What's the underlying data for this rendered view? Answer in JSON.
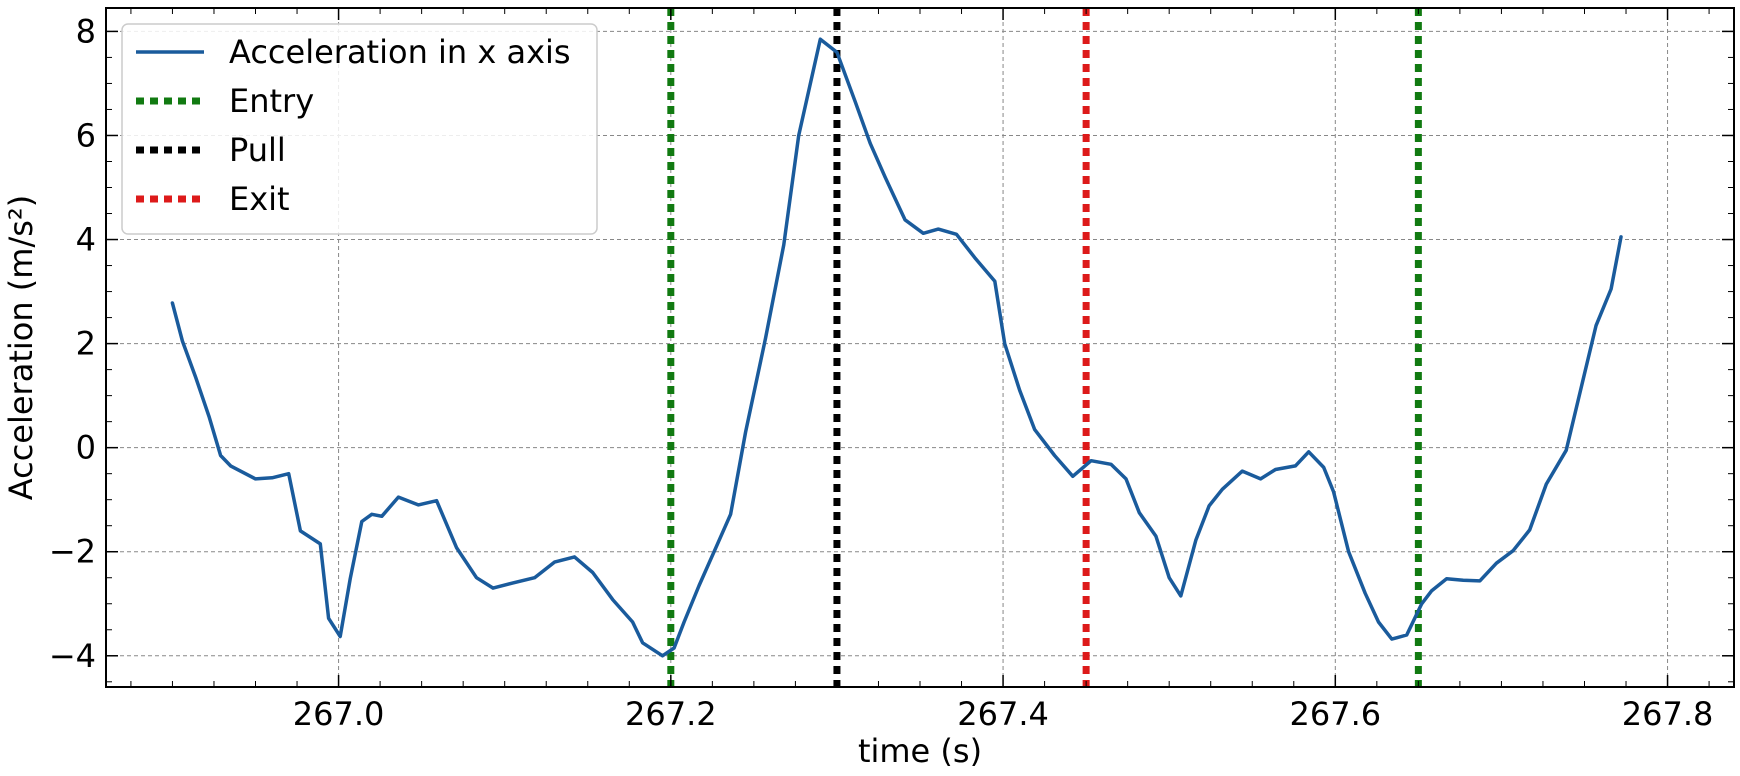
{
  "chart_data": {
    "type": "line",
    "title": "",
    "xlabel": "time (s)",
    "ylabel": "Acceleration (m/s²)",
    "xlim": [
      266.86,
      267.84
    ],
    "ylim": [
      -4.6,
      8.45
    ],
    "xticks": [
      267.0,
      267.2,
      267.4,
      267.6,
      267.8
    ],
    "xtick_labels": [
      "267.0",
      "267.2",
      "267.4",
      "267.6",
      "267.8"
    ],
    "yticks": [
      -4,
      -2,
      0,
      2,
      4,
      6,
      8
    ],
    "ytick_labels": [
      "−4",
      "−2",
      "0",
      "2",
      "4",
      "6",
      "8"
    ],
    "grid": true,
    "legend_position": "top-left",
    "series": [
      {
        "name": "Acceleration in x axis",
        "color": "#1a5b9c",
        "style": "solid",
        "x": [
          266.9,
          266.906,
          266.914,
          266.922,
          266.929,
          266.935,
          266.95,
          266.96,
          266.97,
          266.977,
          266.989,
          266.994,
          267.001,
          267.007,
          267.014,
          267.02,
          267.026,
          267.036,
          267.048,
          267.059,
          267.071,
          267.083,
          267.093,
          267.105,
          267.118,
          267.13,
          267.142,
          267.153,
          267.165,
          267.177,
          267.183,
          267.195,
          267.202,
          267.208,
          267.217,
          267.227,
          267.236,
          267.245,
          267.257,
          267.268,
          267.277,
          267.29,
          267.3,
          267.311,
          267.32,
          267.329,
          267.341,
          267.352,
          267.361,
          267.372,
          267.383,
          267.395,
          267.401,
          267.41,
          267.419,
          267.431,
          267.442,
          267.453,
          267.465,
          267.474,
          267.482,
          267.492,
          267.5,
          267.507,
          267.516,
          267.524,
          267.532,
          267.544,
          267.555,
          267.564,
          267.576,
          267.584,
          267.593,
          267.599,
          267.608,
          267.618,
          267.626,
          267.634,
          267.643,
          267.652,
          267.658,
          267.667,
          267.677,
          267.687,
          267.697,
          267.707,
          267.717,
          267.727,
          267.739,
          267.747,
          267.757,
          267.766,
          267.772,
          267.781,
          267.789
        ],
        "y": [
          2.78,
          2.05,
          1.35,
          0.6,
          -0.15,
          -0.35,
          -0.6,
          -0.58,
          -0.5,
          -1.6,
          -1.85,
          -3.28,
          -3.63,
          -2.52,
          -1.42,
          -1.28,
          -1.32,
          -0.95,
          -1.1,
          -1.02,
          -1.92,
          -2.5,
          -2.7,
          -2.6,
          -2.5,
          -2.2,
          -2.1,
          -2.4,
          -2.92,
          -3.35,
          -3.75,
          -4.0,
          -3.85,
          -3.35,
          -2.65,
          -1.93,
          -1.28,
          0.3,
          2.1,
          3.9,
          6.0,
          7.85,
          7.6,
          6.65,
          5.85,
          5.2,
          4.38,
          4.12,
          4.2,
          4.1,
          3.65,
          3.2,
          2.0,
          1.1,
          0.35,
          -0.15,
          -0.55,
          -0.25,
          -0.32,
          -0.6,
          -1.25,
          -1.7,
          -2.5,
          -2.85,
          -1.78,
          -1.12,
          -0.8,
          -0.45,
          -0.6,
          -0.42,
          -0.35,
          -0.08,
          -0.38,
          -0.85,
          -2.0,
          -2.8,
          -3.35,
          -3.68,
          -3.6,
          -3.0,
          -2.75,
          -2.52,
          -2.55,
          -2.56,
          -2.22,
          -1.98,
          -1.58,
          -0.7,
          -0.05,
          1.02,
          2.35,
          3.05,
          4.05,
          null,
          null
        ],
        "_note_unused": null
      }
    ],
    "vlines": [
      {
        "name": "Entry",
        "x": 267.2,
        "color": "#117a11",
        "style": "dotted"
      },
      {
        "name": "Pull",
        "x": 267.3,
        "color": "#000000",
        "style": "dotted"
      },
      {
        "name": "Exit",
        "x": 267.45,
        "color": "#dd1a1a",
        "style": "dotted"
      },
      {
        "name": "Entry",
        "x": 267.65,
        "color": "#117a11",
        "style": "dotted"
      }
    ],
    "legend": [
      {
        "label": "Acceleration in x axis",
        "color": "#1a5b9c",
        "style": "solid"
      },
      {
        "label": "Entry",
        "color": "#117a11",
        "style": "dotted"
      },
      {
        "label": "Pull",
        "color": "#000000",
        "style": "dotted"
      },
      {
        "label": "Exit",
        "color": "#dd1a1a",
        "style": "dotted"
      }
    ]
  }
}
